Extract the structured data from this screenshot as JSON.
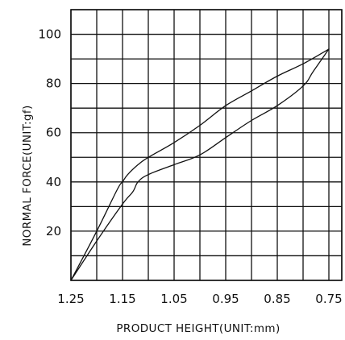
{
  "chart_data": {
    "type": "line",
    "title": "",
    "xlabel": "PRODUCT HEIGHT(UNIT:mm)",
    "ylabel": "NORMAL FORCE(UNIT:gf)",
    "x_reversed": true,
    "xlim": [
      1.25,
      0.725
    ],
    "ylim": [
      0,
      110
    ],
    "x_ticks": [
      "1.25",
      "1.15",
      "1.05",
      "0.95",
      "0.85",
      "0.75"
    ],
    "x_tick_values": [
      1.25,
      1.15,
      1.05,
      0.95,
      0.85,
      0.75
    ],
    "y_ticks": [
      "20",
      "40",
      "60",
      "80",
      "100"
    ],
    "y_tick_values": [
      20,
      40,
      60,
      80,
      100
    ],
    "x_grid": [
      1.25,
      1.2,
      1.15,
      1.1,
      1.05,
      1.0,
      0.95,
      0.9,
      0.85,
      0.8,
      0.75,
      0.725
    ],
    "y_grid": [
      0,
      10,
      20,
      30,
      40,
      50,
      60,
      70,
      80,
      90,
      100,
      110
    ],
    "grid": true,
    "series": [
      {
        "x": [
          1.25,
          1.2,
          1.16,
          1.15,
          1.14,
          1.12,
          1.1,
          1.05,
          1.0,
          0.95,
          0.9,
          0.85,
          0.8,
          0.75
        ],
        "y": [
          0,
          20,
          37,
          40,
          43,
          47,
          50,
          56,
          63,
          71,
          77,
          83,
          88,
          94
        ]
      },
      {
        "x": [
          1.25,
          1.2,
          1.15,
          1.13,
          1.12,
          1.1,
          1.05,
          1.0,
          0.95,
          0.9,
          0.85,
          0.8,
          0.78,
          0.75
        ],
        "y": [
          0,
          16,
          31,
          36,
          40,
          43,
          47,
          51,
          58,
          65,
          71,
          79,
          85,
          94
        ]
      }
    ]
  }
}
